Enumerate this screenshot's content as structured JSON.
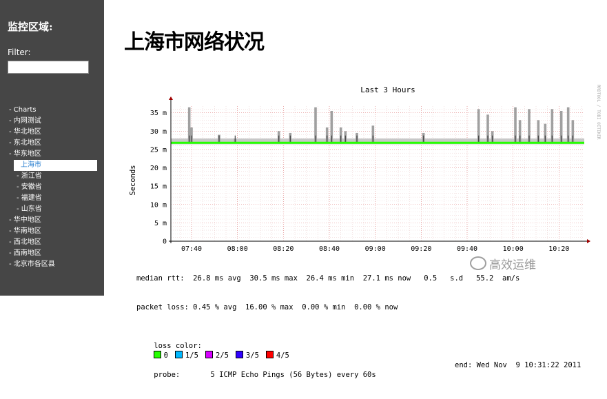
{
  "sidebar": {
    "title": "监控区域:",
    "filter_label": "Filter:",
    "filter_value": "",
    "items": [
      {
        "label": "- Charts",
        "level": 1
      },
      {
        "label": "- 内网测试",
        "level": 1
      },
      {
        "label": "- 华北地区",
        "level": 1
      },
      {
        "label": "- 东北地区",
        "level": 1
      },
      {
        "label": "- 华东地区",
        "level": 1
      },
      {
        "label": "上海市",
        "level": 2,
        "active": true
      },
      {
        "label": "- 浙江省",
        "level": 2
      },
      {
        "label": "- 安徽省",
        "level": 2
      },
      {
        "label": "- 福建省",
        "level": 2
      },
      {
        "label": "- 山东省",
        "level": 2
      },
      {
        "label": "- 华中地区",
        "level": 1
      },
      {
        "label": "- 华南地区",
        "level": 1
      },
      {
        "label": "- 西北地区",
        "level": 1
      },
      {
        "label": "- 西南地区",
        "level": 1
      },
      {
        "label": "- 北京市各区县",
        "level": 1
      }
    ]
  },
  "main": {
    "title": "上海市网络状况"
  },
  "chart_data": {
    "type": "area",
    "title": "Last 3 Hours",
    "ylabel": "Seconds",
    "side_label": "RRDTOOL / TOBI OETIKER",
    "ylim": [
      0,
      37
    ],
    "yticks": [
      0,
      5,
      10,
      15,
      20,
      25,
      30,
      35
    ],
    "ytick_labels": [
      "0",
      "5 m",
      "10 m",
      "15 m",
      "20 m",
      "25 m",
      "30 m",
      "35 m"
    ],
    "xtick_labels": [
      "07:40",
      "08:00",
      "08:20",
      "08:40",
      "09:00",
      "09:20",
      "09:40",
      "10:00",
      "10:20"
    ],
    "x_start": "07:31",
    "x_end": "10:31",
    "median_rtt_ms": 26.8,
    "smoke_spikes": [
      {
        "time": "07:39",
        "top": 36.5
      },
      {
        "time": "07:40",
        "top": 31.0
      },
      {
        "time": "07:52",
        "top": 29.0
      },
      {
        "time": "07:59",
        "top": 28.0
      },
      {
        "time": "08:18",
        "top": 30.0
      },
      {
        "time": "08:23",
        "top": 29.5
      },
      {
        "time": "08:34",
        "top": 36.5
      },
      {
        "time": "08:39",
        "top": 31.0
      },
      {
        "time": "08:41",
        "top": 35.5
      },
      {
        "time": "08:45",
        "top": 31.0
      },
      {
        "time": "08:47",
        "top": 30.0
      },
      {
        "time": "08:52",
        "top": 29.5
      },
      {
        "time": "08:59",
        "top": 31.5
      },
      {
        "time": "09:21",
        "top": 29.5
      },
      {
        "time": "09:45",
        "top": 36.0
      },
      {
        "time": "09:49",
        "top": 34.5
      },
      {
        "time": "09:51",
        "top": 30.0
      },
      {
        "time": "10:01",
        "top": 36.5
      },
      {
        "time": "10:03",
        "top": 33.0
      },
      {
        "time": "10:07",
        "top": 36.0
      },
      {
        "time": "10:11",
        "top": 33.0
      },
      {
        "time": "10:14",
        "top": 32.0
      },
      {
        "time": "10:17",
        "top": 36.0
      },
      {
        "time": "10:21",
        "top": 35.5
      },
      {
        "time": "10:24",
        "top": 36.5
      },
      {
        "time": "10:26",
        "top": 33.0
      }
    ],
    "loss_colors": [
      {
        "label": "0",
        "color": "#26ff00"
      },
      {
        "label": "1/5",
        "color": "#00b8ff"
      },
      {
        "label": "2/5",
        "color": "#d600ff"
      },
      {
        "label": "3/5",
        "color": "#3000ff"
      },
      {
        "label": "4/5",
        "color": "#ff0000"
      }
    ],
    "median_rtt_line": "median rtt:  26.8 ms avg  30.5 ms max  26.4 ms min  27.1 ms now   0.5   s.d   55.2  am/s",
    "packet_loss_line": "packet loss: 0.45 % avg  16.00 % max  0.00 % min  0.00 % now",
    "loss_color_label": "loss color:",
    "probe_line": "probe:       5 ICMP Echo Pings (56 Bytes) every 60s",
    "end_line": "end: Wed Nov  9 10:31:22 2011"
  },
  "watermark": "高效运维"
}
